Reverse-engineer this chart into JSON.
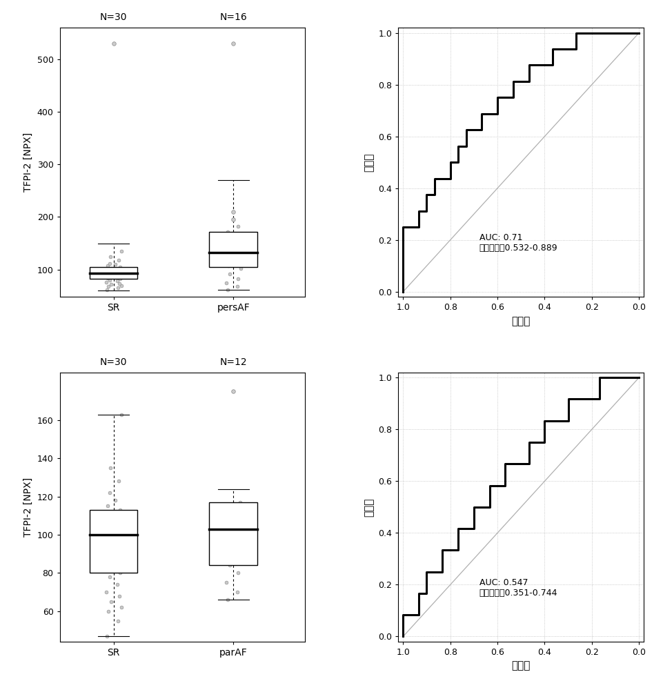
{
  "panel1": {
    "title1": "N=30",
    "title2": "N=16",
    "ylabel": "TFPI-2 [NPX]",
    "categories": [
      "SR",
      "persAF"
    ],
    "SR": {
      "median": 93,
      "q1": 83,
      "q3": 105,
      "whisker_low": 60,
      "whisker_high": 150,
      "outliers": [
        530
      ],
      "jitter_y": [
        62,
        65,
        68,
        70,
        72,
        74,
        76,
        78,
        80,
        82,
        84,
        85,
        86,
        87,
        88,
        90,
        92,
        93,
        95,
        96,
        98,
        100,
        102,
        105,
        108,
        110,
        112,
        118,
        125,
        135
      ],
      "jitter_x": [
        -0.08,
        0.05,
        -0.06,
        0.09,
        -0.03,
        0.07,
        -0.09,
        0.04,
        -0.05,
        0.08,
        -0.07,
        0.02,
        -0.04,
        0.06,
        -0.08,
        0.03,
        -0.02,
        0.07,
        -0.06,
        0.05,
        -0.09,
        0.04,
        -0.03,
        0.08,
        -0.07,
        0.02,
        -0.05,
        0.06,
        -0.04,
        0.09
      ]
    },
    "persAF": {
      "median": 132,
      "q1": 105,
      "q3": 172,
      "whisker_low": 62,
      "whisker_high": 270,
      "outliers": [
        530,
        195,
        210
      ],
      "jitter_y": [
        62,
        68,
        75,
        82,
        92,
        102,
        108,
        115,
        120,
        130,
        135,
        140,
        150,
        162,
        172,
        182
      ],
      "jitter_x": [
        -0.07,
        0.05,
        -0.08,
        0.06,
        -0.04,
        0.09,
        -0.06,
        0.03,
        -0.09,
        0.07,
        -0.02,
        0.08,
        -0.05,
        0.04,
        -0.07,
        0.06
      ]
    },
    "ylim": [
      48,
      560
    ],
    "yticks": [
      100,
      200,
      300,
      400,
      500
    ]
  },
  "panel2": {
    "roc_specificity": [
      1.0,
      1.0,
      0.967,
      0.933,
      0.9,
      0.867,
      0.833,
      0.8,
      0.767,
      0.733,
      0.7,
      0.667,
      0.633,
      0.6,
      0.567,
      0.533,
      0.5,
      0.467,
      0.433,
      0.4,
      0.367,
      0.333,
      0.3,
      0.267,
      0.233,
      0.2,
      0.167,
      0.133,
      0.1,
      0.067,
      0.033,
      0.0
    ],
    "roc_sensitivity": [
      0.0,
      0.25,
      0.25,
      0.3125,
      0.375,
      0.4375,
      0.4375,
      0.5,
      0.5625,
      0.625,
      0.625,
      0.6875,
      0.6875,
      0.75,
      0.75,
      0.8125,
      0.8125,
      0.875,
      0.875,
      0.875,
      0.9375,
      0.9375,
      0.9375,
      1.0,
      1.0,
      1.0,
      1.0,
      1.0,
      1.0,
      1.0,
      1.0,
      1.0
    ],
    "auc_text": "AUC: 0.71",
    "ci_text": "置信区间：0.532-0.889",
    "xlabel": "特异性",
    "ylabel": "敏感性"
  },
  "panel3": {
    "title1": "N=30",
    "title2": "N=12",
    "ylabel": "TFPI-2 [NPX]",
    "categories": [
      "SR",
      "parAF"
    ],
    "SR": {
      "median": 100,
      "q1": 80,
      "q3": 113,
      "whisker_low": 47,
      "whisker_high": 163,
      "outliers": [],
      "jitter_y": [
        47,
        55,
        60,
        62,
        65,
        68,
        70,
        74,
        78,
        80,
        82,
        85,
        87,
        90,
        93,
        95,
        97,
        100,
        102,
        105,
        108,
        110,
        112,
        113,
        115,
        118,
        122,
        128,
        135,
        163
      ],
      "jitter_x": [
        -0.08,
        0.05,
        -0.06,
        0.09,
        -0.03,
        0.07,
        -0.09,
        0.04,
        -0.05,
        0.08,
        -0.07,
        0.02,
        -0.04,
        0.06,
        -0.08,
        0.03,
        -0.02,
        0.07,
        -0.06,
        0.05,
        -0.09,
        0.04,
        -0.03,
        0.08,
        -0.07,
        0.02,
        -0.05,
        0.06,
        -0.04,
        0.09
      ]
    },
    "parAF": {
      "median": 103,
      "q1": 84,
      "q3": 117,
      "whisker_low": 66,
      "whisker_high": 124,
      "outliers": [
        175
      ],
      "jitter_y": [
        66,
        70,
        75,
        80,
        84,
        90,
        95,
        100,
        103,
        108,
        112,
        117
      ],
      "jitter_x": [
        -0.07,
        0.05,
        -0.08,
        0.06,
        -0.04,
        0.09,
        -0.06,
        0.03,
        -0.09,
        0.07,
        -0.02,
        0.08
      ]
    },
    "ylim": [
      44,
      185
    ],
    "yticks": [
      60,
      80,
      100,
      120,
      140,
      160
    ]
  },
  "panel4": {
    "roc_specificity": [
      1.0,
      1.0,
      0.967,
      0.933,
      0.9,
      0.867,
      0.833,
      0.8,
      0.767,
      0.733,
      0.7,
      0.667,
      0.633,
      0.6,
      0.567,
      0.533,
      0.5,
      0.467,
      0.433,
      0.4,
      0.367,
      0.333,
      0.3,
      0.267,
      0.233,
      0.2,
      0.167,
      0.133,
      0.1,
      0.067,
      0.033,
      0.0
    ],
    "roc_sensitivity": [
      0.0,
      0.0833,
      0.0833,
      0.1667,
      0.25,
      0.25,
      0.3333,
      0.3333,
      0.4167,
      0.4167,
      0.5,
      0.5,
      0.5833,
      0.5833,
      0.6667,
      0.6667,
      0.6667,
      0.75,
      0.75,
      0.8333,
      0.8333,
      0.8333,
      0.9167,
      0.9167,
      0.9167,
      0.9167,
      1.0,
      1.0,
      1.0,
      1.0,
      1.0,
      1.0
    ],
    "auc_text": "AUC: 0.547",
    "ci_text": "置信区间：0.351-0.744",
    "xlabel": "特异性",
    "ylabel": "敏感性"
  }
}
